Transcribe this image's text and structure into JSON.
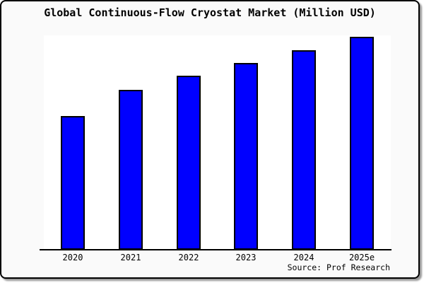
{
  "chart_data": {
    "type": "bar",
    "title": "Global Continuous-Flow Cryostat Market (Million USD)",
    "categories": [
      "2020",
      "2021",
      "2022",
      "2023",
      "2024",
      "2025e"
    ],
    "relative_values_pct_of_max": [
      62.8,
      75.1,
      81.7,
      87.7,
      93.7,
      100
    ],
    "value_axis_labels_visible": false,
    "grid": false,
    "legend": false,
    "source": "Source: Prof Research",
    "bar_color": "#0000ff",
    "bar_border_color": "#000000",
    "plot_background": "#ffffff",
    "card_background": "#fafafa"
  }
}
